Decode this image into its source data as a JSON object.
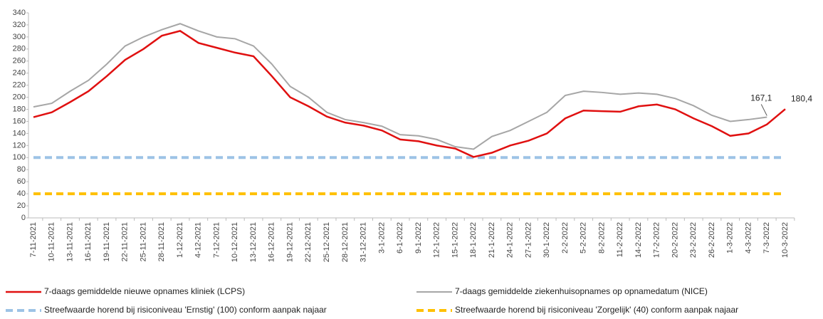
{
  "chart_data": {
    "type": "line",
    "categories": [
      "7-11-2021",
      "10-11-2021",
      "13-11-2021",
      "16-11-2021",
      "19-11-2021",
      "22-11-2021",
      "25-11-2021",
      "28-11-2021",
      "1-12-2021",
      "4-12-2021",
      "7-12-2021",
      "10-12-2021",
      "13-12-2021",
      "16-12-2021",
      "19-12-2021",
      "22-12-2021",
      "25-12-2021",
      "28-12-2021",
      "31-12-2021",
      "3-1-2022",
      "6-1-2022",
      "9-1-2022",
      "12-1-2022",
      "15-1-2022",
      "18-1-2022",
      "21-1-2022",
      "24-1-2022",
      "27-1-2022",
      "30-1-2022",
      "2-2-2022",
      "5-2-2022",
      "8-2-2022",
      "11-2-2022",
      "14-2-2022",
      "17-2-2022",
      "20-2-2022",
      "23-2-2022",
      "26-2-2022",
      "1-3-2022",
      "4-3-2022",
      "7-3-2022",
      "10-3-2022"
    ],
    "series": [
      {
        "name": "7-daags gemiddelde nieuwe opnames kliniek (LCPS)",
        "color": "#e01010",
        "values": [
          167,
          175,
          192,
          210,
          235,
          262,
          280,
          302,
          310,
          290,
          282,
          274,
          268,
          235,
          200,
          185,
          168,
          158,
          153,
          145,
          130,
          127,
          120,
          115,
          101,
          108,
          120,
          128,
          140,
          165,
          178,
          177,
          176,
          185,
          188,
          180,
          165,
          152,
          136,
          140,
          155,
          180.4
        ],
        "value_labels": [
          null,
          null,
          null,
          null,
          null,
          null,
          null,
          null,
          null,
          null,
          null,
          null,
          null,
          null,
          null,
          null,
          null,
          null,
          null,
          null,
          null,
          null,
          null,
          null,
          null,
          null,
          null,
          null,
          null,
          null,
          null,
          null,
          null,
          null,
          null,
          null,
          null,
          null,
          null,
          null,
          null,
          "180,4"
        ]
      },
      {
        "name": "7-daags gemiddelde ziekenhuisopnames op opnamedatum (NICE)",
        "color": "#a6a6a6",
        "values": [
          184,
          190,
          210,
          228,
          255,
          285,
          300,
          312,
          322,
          310,
          300,
          297,
          285,
          255,
          218,
          200,
          175,
          163,
          158,
          152,
          138,
          136,
          130,
          118,
          114,
          135,
          145,
          160,
          175,
          203,
          210,
          208,
          205,
          207,
          205,
          198,
          186,
          170,
          160,
          163,
          167.1,
          null
        ],
        "value_labels": [
          null,
          null,
          null,
          null,
          null,
          null,
          null,
          null,
          null,
          null,
          null,
          null,
          null,
          null,
          null,
          null,
          null,
          null,
          null,
          null,
          null,
          null,
          null,
          null,
          null,
          null,
          null,
          null,
          null,
          null,
          null,
          null,
          null,
          null,
          null,
          null,
          null,
          null,
          null,
          null,
          "167,1",
          null
        ]
      }
    ],
    "reference_lines": [
      {
        "name": "Streefwaarde horend bij risiconiveau 'Ernstig' (100) conform aanpak najaar",
        "value": 100,
        "color": "#9dc3e6"
      },
      {
        "name": "Streefwaarde horend bij risiconiveau 'Zorgelijk' (40) conform aanpak najaar",
        "value": 40,
        "color": "#ffc000"
      }
    ],
    "ylim": [
      0,
      340
    ],
    "yticks": [
      0,
      20,
      40,
      60,
      80,
      100,
      120,
      140,
      160,
      180,
      200,
      220,
      240,
      260,
      280,
      300,
      320,
      340
    ],
    "grid": false
  }
}
